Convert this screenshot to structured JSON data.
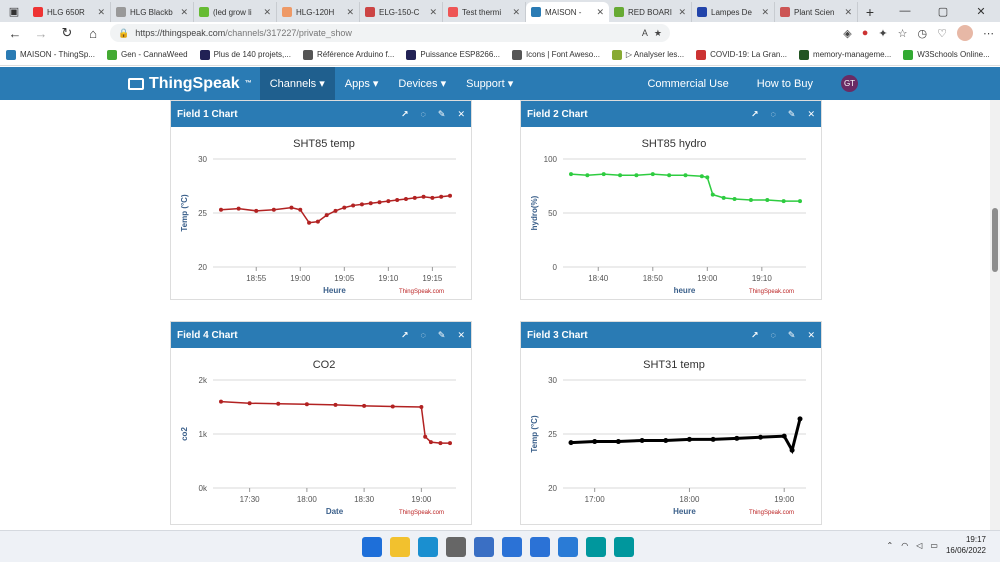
{
  "browser": {
    "tabs": [
      {
        "label": "HLG 650R",
        "color": "#e33"
      },
      {
        "label": "HLG Blackb",
        "color": "#999"
      },
      {
        "label": "(led grow li",
        "color": "#6b3"
      },
      {
        "label": "HLG-120H",
        "color": "#e96"
      },
      {
        "label": "ELG-150-C",
        "color": "#c44"
      },
      {
        "label": "Test thermi",
        "color": "#e55"
      },
      {
        "label": "MAISON -",
        "color": "#2a7bb4",
        "active": true
      },
      {
        "label": "RED BOARI",
        "color": "#6a3"
      },
      {
        "label": "Lampes De",
        "color": "#24a"
      },
      {
        "label": "Plant Scien",
        "color": "#c55"
      }
    ],
    "url_host": "https://thingspeak.com",
    "url_path": "/channels/317227/private_show",
    "bookmarks": [
      {
        "label": "MAISON - ThingSp...",
        "color": "#2a7bb4"
      },
      {
        "label": "Gen - CannaWeed",
        "color": "#4a3"
      },
      {
        "label": "Plus de 140 projets,...",
        "color": "#225"
      },
      {
        "label": "Référence Arduino f...",
        "color": "#555"
      },
      {
        "label": "Puissance ESP8266...",
        "color": "#225"
      },
      {
        "label": "Icons | Font Aweso...",
        "color": "#555"
      },
      {
        "label": "▷ Analyser les...",
        "color": "#8a3"
      },
      {
        "label": "COVID-19: La Gran...",
        "color": "#c33"
      },
      {
        "label": "memory-manageme...",
        "color": "#252"
      },
      {
        "label": "W3Schools Online...",
        "color": "#3a3"
      }
    ]
  },
  "thingspeak": {
    "logo": "ThingSpeak",
    "tm": "™",
    "menu": [
      "Channels ▾",
      "Apps ▾",
      "Devices ▾",
      "Support ▾"
    ],
    "right": [
      "Commercial Use",
      "How to Buy"
    ],
    "avatar": "GT"
  },
  "cards": [
    {
      "header": "Field 1 Chart",
      "title": "SHT85 temp",
      "xlabel": "Heure",
      "ylabel": "Temp (°C)",
      "credit": "ThingSpeak.com"
    },
    {
      "header": "Field 2 Chart",
      "title": "SHT85 hydro",
      "xlabel": "heure",
      "ylabel": "hydro(%)",
      "credit": "ThingSpeak.com"
    },
    {
      "header": "Field 4 Chart",
      "title": "CO2",
      "xlabel": "Date",
      "ylabel": "co2",
      "credit": "ThingSpeak.com"
    },
    {
      "header": "Field 3 Chart",
      "title": "SHT31 temp",
      "xlabel": "Heure",
      "ylabel": "Temp (°C)",
      "credit": "ThingSpeak.com"
    }
  ],
  "chart_data": [
    {
      "type": "line",
      "title": "SHT85 temp",
      "xlabel": "Heure",
      "ylabel": "Temp (°C)",
      "x": [
        "18:51",
        "18:53",
        "18:55",
        "18:57",
        "18:59",
        "19:00",
        "19:01",
        "19:02",
        "19:03",
        "19:04",
        "19:05",
        "19:06",
        "19:07",
        "19:08",
        "19:09",
        "19:10",
        "19:11",
        "19:12",
        "19:13",
        "19:14",
        "19:15",
        "19:16",
        "19:17"
      ],
      "values": [
        25.3,
        25.4,
        25.2,
        25.3,
        25.5,
        25.3,
        24.1,
        24.2,
        24.8,
        25.2,
        25.5,
        25.7,
        25.8,
        25.9,
        26.0,
        26.1,
        26.2,
        26.3,
        26.4,
        26.5,
        26.4,
        26.5,
        26.6
      ],
      "ylim": [
        20,
        30
      ],
      "yticks": [
        "30",
        "25",
        "20"
      ],
      "xticks": [
        "18:55",
        "19:00",
        "19:05",
        "19:10",
        "19:15"
      ],
      "color": "#b22222",
      "grid": true
    },
    {
      "type": "line",
      "title": "SHT85 hydro",
      "xlabel": "heure",
      "ylabel": "hydro(%)",
      "x": [
        "18:35",
        "18:38",
        "18:41",
        "18:44",
        "18:47",
        "18:50",
        "18:53",
        "18:56",
        "18:59",
        "19:00",
        "19:01",
        "19:03",
        "19:05",
        "19:08",
        "19:11",
        "19:14",
        "19:17"
      ],
      "values": [
        86,
        85,
        86,
        85,
        85,
        86,
        85,
        85,
        84,
        83,
        67,
        64,
        63,
        62,
        62,
        61,
        61
      ],
      "ylim": [
        0,
        100
      ],
      "yticks": [
        "100",
        "50",
        "0"
      ],
      "xticks": [
        "18:40",
        "18:50",
        "19:00",
        "19:10"
      ],
      "color": "#2ecc40",
      "grid": true
    },
    {
      "type": "line",
      "title": "CO2",
      "xlabel": "Date",
      "ylabel": "co2",
      "x": [
        "17:15",
        "17:30",
        "17:45",
        "18:00",
        "18:15",
        "18:30",
        "18:45",
        "19:00",
        "19:02",
        "19:05",
        "19:10",
        "19:15"
      ],
      "values": [
        1600,
        1570,
        1560,
        1550,
        1540,
        1520,
        1510,
        1500,
        950,
        850,
        830,
        830
      ],
      "ylim": [
        0,
        2000
      ],
      "yticks": [
        "2k",
        "1k",
        "0k"
      ],
      "xticks": [
        "17:30",
        "18:00",
        "18:30",
        "19:00"
      ],
      "color": "#b22222",
      "grid": true
    },
    {
      "type": "line",
      "title": "SHT31 temp",
      "xlabel": "Heure",
      "ylabel": "Temp (°C)",
      "x": [
        "16:45",
        "17:00",
        "17:15",
        "17:30",
        "17:45",
        "18:00",
        "18:15",
        "18:30",
        "18:45",
        "19:00",
        "19:05",
        "19:10"
      ],
      "values": [
        24.2,
        24.3,
        24.3,
        24.4,
        24.4,
        24.5,
        24.5,
        24.6,
        24.7,
        24.8,
        23.5,
        26.4
      ],
      "ylim": [
        20,
        30
      ],
      "yticks": [
        "30",
        "25",
        "20"
      ],
      "xticks": [
        "17:00",
        "18:00",
        "19:00"
      ],
      "color": "#000000",
      "grid": true
    }
  ],
  "taskbar": {
    "apps": [
      "#1e6fd9",
      "#f2c12e",
      "#1a8fd0",
      "#666",
      "#3a6fc4",
      "#2b72d6",
      "#2b72d6",
      "#2a7bd6",
      "#00979d",
      "#00979d"
    ],
    "time": "19:17",
    "date": "16/06/2022"
  }
}
